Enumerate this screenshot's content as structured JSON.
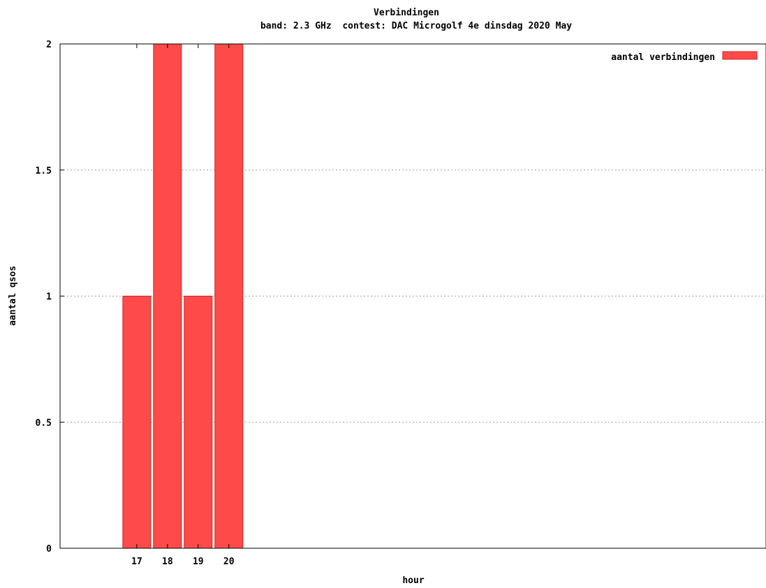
{
  "chart_data": {
    "type": "bar",
    "title": "Verbindingen",
    "subtitle": "band: 2.3 GHz  contest: DAC Microgolf 4e dinsdag 2020 May",
    "xlabel": "hour",
    "ylabel": "aantal qsos",
    "categories": [
      "17",
      "18",
      "19",
      "20"
    ],
    "series": [
      {
        "name": "aantal verbindingen",
        "values": [
          1,
          2,
          1,
          2
        ]
      }
    ],
    "ylim": [
      0,
      2
    ],
    "yticks": [
      {
        "value": 0,
        "label": "0"
      },
      {
        "value": 0.5,
        "label": "0.5"
      },
      {
        "value": 1,
        "label": "1"
      },
      {
        "value": 1.5,
        "label": "1.5"
      },
      {
        "value": 2,
        "label": "2"
      }
    ],
    "x_range": [
      14.5,
      37.5
    ],
    "grid": true,
    "legend_position": "top-right",
    "bar_color": "#ff4a4a",
    "bar_edge_color": "#d42020"
  }
}
